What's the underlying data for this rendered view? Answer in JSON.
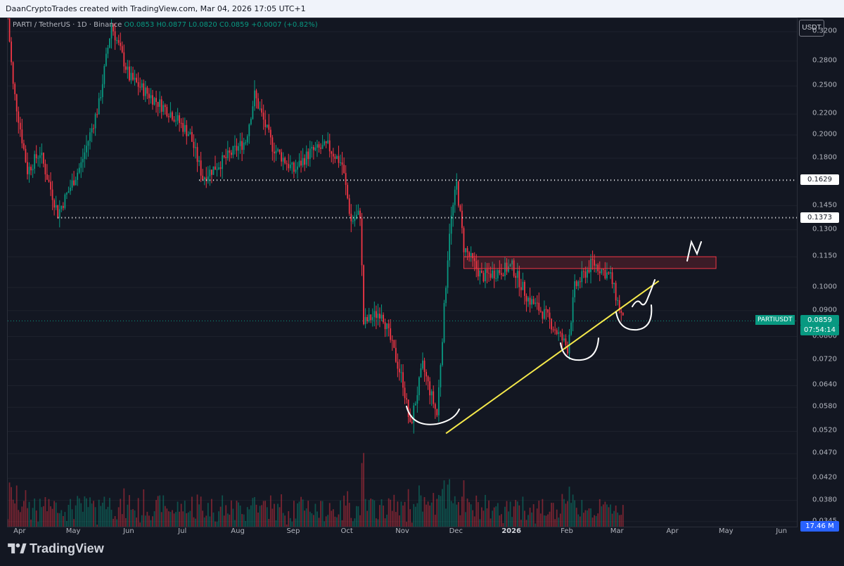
{
  "header": {
    "attribution": "DaanCryptoTrades created with TradingView.com, Mar 04, 2026 17:05 UTC+1"
  },
  "legend": {
    "symbol": "PARTI / TetherUS · 1D · Binance",
    "open": "O0.0853",
    "high": "H0.0877",
    "low": "L0.0820",
    "close": "C0.0859",
    "change": "+0.0007 (+0.82%)"
  },
  "price_axis": {
    "currency": "USDT",
    "labels": [
      "0.3200",
      "0.2800",
      "0.2500",
      "0.2200",
      "0.2000",
      "0.1800",
      "0.1450",
      "0.1300",
      "0.1150",
      "0.1000",
      "0.0900",
      "0.0800",
      "0.0720",
      "0.0640",
      "0.0580",
      "0.0520",
      "0.0470",
      "0.0420",
      "0.0380",
      "0.0345"
    ],
    "tags": {
      "level_high": "0.1629",
      "level_low": "0.1373",
      "last_price": "0.0859",
      "countdown": "07:54:14",
      "volume": "17.46 M"
    }
  },
  "symbol_tag": "PARTIUSDT",
  "time_axis": {
    "labels": [
      {
        "text": "Apr",
        "bold": false
      },
      {
        "text": "May",
        "bold": false
      },
      {
        "text": "Jun",
        "bold": false
      },
      {
        "text": "Jul",
        "bold": false
      },
      {
        "text": "Aug",
        "bold": false
      },
      {
        "text": "Sep",
        "bold": false
      },
      {
        "text": "Oct",
        "bold": false
      },
      {
        "text": "Nov",
        "bold": false
      },
      {
        "text": "Dec",
        "bold": false
      },
      {
        "text": "2026",
        "bold": true
      },
      {
        "text": "Feb",
        "bold": false
      },
      {
        "text": "Mar",
        "bold": false
      },
      {
        "text": "Apr",
        "bold": false
      },
      {
        "text": "May",
        "bold": false
      },
      {
        "text": "Jun",
        "bold": false
      }
    ]
  },
  "brand": {
    "name": "TradingView"
  },
  "colors": {
    "up": "#089981",
    "down": "#f23645",
    "background": "#131722",
    "trendline": "#f5e94b",
    "resistance_zone": "#f23645"
  },
  "chart_data": {
    "type": "candlestick",
    "symbol": "PARTI / TetherUS",
    "timeframe": "1D",
    "exchange": "Binance",
    "scale": "log",
    "y_range": [
      0.0335,
      0.34
    ],
    "x_range": [
      "2025-03-25",
      "2026-06-10"
    ],
    "last": {
      "open": 0.0853,
      "high": 0.0877,
      "low": 0.082,
      "close": 0.0859
    },
    "price_path": [
      [
        "2025-03-25",
        0.34
      ],
      [
        "2025-03-28",
        0.25
      ],
      [
        "2025-04-05",
        0.17
      ],
      [
        "2025-04-12",
        0.185
      ],
      [
        "2025-04-22",
        0.14
      ],
      [
        "2025-05-05",
        0.175
      ],
      [
        "2025-05-15",
        0.23
      ],
      [
        "2025-05-22",
        0.33
      ],
      [
        "2025-06-01",
        0.26
      ],
      [
        "2025-06-15",
        0.235
      ],
      [
        "2025-06-25",
        0.22
      ],
      [
        "2025-07-05",
        0.2
      ],
      [
        "2025-07-12",
        0.165
      ],
      [
        "2025-07-25",
        0.18
      ],
      [
        "2025-08-05",
        0.195
      ],
      [
        "2025-08-10",
        0.24
      ],
      [
        "2025-08-20",
        0.19
      ],
      [
        "2025-09-01",
        0.17
      ],
      [
        "2025-09-10",
        0.185
      ],
      [
        "2025-09-20",
        0.19
      ],
      [
        "2025-09-28",
        0.175
      ],
      [
        "2025-10-03",
        0.135
      ],
      [
        "2025-10-08",
        0.14
      ],
      [
        "2025-10-10",
        0.085
      ],
      [
        "2025-10-20",
        0.09
      ],
      [
        "2025-11-01",
        0.065
      ],
      [
        "2025-11-05",
        0.053
      ],
      [
        "2025-11-12",
        0.07
      ],
      [
        "2025-11-20",
        0.056
      ],
      [
        "2025-11-27",
        0.13
      ],
      [
        "2025-12-01",
        0.16
      ],
      [
        "2025-12-05",
        0.12
      ],
      [
        "2025-12-15",
        0.105
      ],
      [
        "2026-01-01",
        0.11
      ],
      [
        "2026-01-10",
        0.095
      ],
      [
        "2026-01-20",
        0.088
      ],
      [
        "2026-02-01",
        0.076
      ],
      [
        "2026-02-05",
        0.1
      ],
      [
        "2026-02-15",
        0.112
      ],
      [
        "2026-02-25",
        0.105
      ],
      [
        "2026-03-04",
        0.0859
      ]
    ],
    "horizontal_levels": [
      0.1629,
      0.1373
    ],
    "resistance_zone": [
      0.109,
      0.115
    ],
    "trendline": [
      [
        "2025-11-25",
        0.0515
      ],
      [
        "2026-03-24",
        0.103
      ]
    ]
  }
}
